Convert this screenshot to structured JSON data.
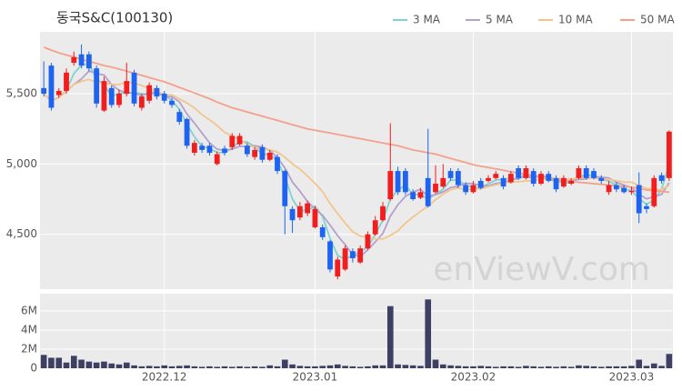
{
  "chart_data": {
    "type": "candlestick",
    "title": "동국S&C(100130)",
    "watermark": "enViewV.com",
    "categories": [
      null,
      null,
      null,
      null,
      null,
      null,
      null,
      null,
      null,
      null,
      null,
      null,
      null,
      null,
      null,
      null,
      "2022.12",
      null,
      null,
      null,
      null,
      null,
      null,
      null,
      null,
      null,
      null,
      null,
      null,
      null,
      null,
      null,
      null,
      null,
      null,
      null,
      "2023.01",
      null,
      null,
      null,
      null,
      null,
      null,
      null,
      null,
      null,
      null,
      null,
      null,
      null,
      null,
      null,
      null,
      null,
      null,
      null,
      null,
      "2023.02",
      null,
      null,
      null,
      null,
      null,
      null,
      null,
      null,
      null,
      null,
      null,
      null,
      null,
      null,
      null,
      null,
      null,
      null,
      null,
      null,
      "2023.03",
      null,
      null,
      null,
      null,
      null
    ],
    "open": [
      5540,
      5700,
      5490,
      5520,
      5720,
      5780,
      5780,
      5680,
      5380,
      5540,
      5420,
      5500,
      5650,
      5400,
      5450,
      5540,
      5500,
      5450,
      5370,
      5320,
      5080,
      5130,
      5130,
      5000,
      5110,
      5120,
      5140,
      5130,
      5050,
      5120,
      5030,
      5050,
      4950,
      4680,
      4620,
      4650,
      4550,
      4550,
      4450,
      4200,
      4250,
      4380,
      4300,
      4400,
      4500,
      4600,
      4750,
      4950,
      4950,
      4800,
      4760,
      4900,
      4800,
      4840,
      4950,
      4950,
      4850,
      4800,
      4880,
      4880,
      4900,
      4900,
      4870,
      4970,
      4900,
      4950,
      4860,
      4930,
      4900,
      4840,
      4860,
      4900,
      4970,
      4950,
      4900,
      4800,
      4850,
      4830,
      4800,
      4850,
      4700,
      4700,
      4920,
      4900
    ],
    "high": [
      5730,
      5720,
      5540,
      5680,
      5800,
      5850,
      5800,
      5700,
      5620,
      5560,
      5530,
      5720,
      5670,
      5500,
      5580,
      5560,
      5520,
      5470,
      5390,
      5330,
      5170,
      5150,
      5150,
      5090,
      5130,
      5220,
      5220,
      5150,
      5120,
      5140,
      5100,
      5070,
      4960,
      4700,
      4730,
      4740,
      4700,
      4570,
      4460,
      4340,
      4420,
      4400,
      4420,
      4520,
      4630,
      4730,
      5290,
      4980,
      4970,
      4820,
      4830,
      5250,
      4990,
      5000,
      4970,
      4970,
      4870,
      4880,
      4900,
      4920,
      4950,
      4920,
      4950,
      4990,
      4990,
      4970,
      4950,
      4950,
      4920,
      4920,
      4900,
      4990,
      4990,
      4970,
      4920,
      4880,
      4870,
      4850,
      4840,
      4940,
      4720,
      4920,
      4940,
      5240
    ],
    "low": [
      5480,
      5380,
      5470,
      5500,
      5700,
      5680,
      5660,
      5400,
      5370,
      5400,
      5400,
      5480,
      5410,
      5380,
      5430,
      5460,
      5430,
      5400,
      5280,
      5110,
      5060,
      5080,
      5060,
      4990,
      5060,
      5100,
      5130,
      5050,
      5030,
      5010,
      5020,
      4930,
      4500,
      4510,
      4600,
      4630,
      4540,
      4460,
      4230,
      4180,
      4240,
      4300,
      4290,
      4390,
      4490,
      4590,
      4740,
      4780,
      4780,
      4740,
      4750,
      4690,
      4790,
      4830,
      4880,
      4830,
      4780,
      4790,
      4820,
      4870,
      4890,
      4820,
      4860,
      4890,
      4890,
      4840,
      4850,
      4870,
      4800,
      4830,
      4850,
      4890,
      4890,
      4890,
      4860,
      4780,
      4800,
      4790,
      4780,
      4580,
      4650,
      4690,
      4860,
      4880
    ],
    "close": [
      5500,
      5400,
      5520,
      5650,
      5760,
      5700,
      5680,
      5430,
      5590,
      5420,
      5500,
      5590,
      5430,
      5480,
      5560,
      5480,
      5450,
      5420,
      5300,
      5130,
      5150,
      5100,
      5080,
      5070,
      5080,
      5200,
      5200,
      5070,
      5100,
      5030,
      5080,
      4950,
      4700,
      4600,
      4700,
      4720,
      4680,
      4480,
      4250,
      4320,
      4400,
      4330,
      4400,
      4500,
      4600,
      4700,
      4950,
      4800,
      4800,
      4750,
      4800,
      4700,
      4860,
      4900,
      4900,
      4850,
      4800,
      4850,
      4830,
      4900,
      4930,
      4840,
      4930,
      4900,
      4970,
      4860,
      4930,
      4880,
      4820,
      4900,
      4880,
      4970,
      4900,
      4900,
      4880,
      4850,
      4820,
      4800,
      4810,
      4650,
      4680,
      4900,
      4880,
      5230
    ],
    "volume": [
      1400000,
      1100000,
      1100000,
      600000,
      1300000,
      900000,
      700000,
      600000,
      700000,
      500000,
      400000,
      600000,
      300000,
      200000,
      250000,
      200000,
      300000,
      200000,
      250000,
      300000,
      200000,
      150000,
      200000,
      150000,
      200000,
      150000,
      200000,
      150000,
      200000,
      150000,
      300000,
      200000,
      900000,
      400000,
      250000,
      200000,
      200000,
      250000,
      300000,
      400000,
      250000,
      200000,
      150000,
      200000,
      300000,
      300000,
      6500000,
      400000,
      350000,
      300000,
      250000,
      7200000,
      900000,
      400000,
      300000,
      250000,
      200000,
      200000,
      250000,
      200000,
      150000,
      200000,
      200000,
      150000,
      250000,
      200000,
      150000,
      200000,
      150000,
      200000,
      150000,
      300000,
      250000,
      200000,
      150000,
      200000,
      200000,
      200000,
      250000,
      900000,
      250000,
      500000,
      250000,
      1500000
    ],
    "up_color": "#f01e1e",
    "down_color": "#1e64f0",
    "volume_color": "#3d3f63",
    "ma_series": [
      {
        "name": "3 MA",
        "color": "#7fd3cf"
      },
      {
        "name": "5 MA",
        "color": "#b3a0cc"
      },
      {
        "name": "10 MA",
        "color": "#f2c58c"
      },
      {
        "name": "50 MA",
        "color": "#f4a08c",
        "values": [
          5830,
          5810,
          5790,
          5775,
          5760,
          5745,
          5730,
          5715,
          5700,
          5690,
          5675,
          5660,
          5645,
          5630,
          5615,
          5600,
          5585,
          5565,
          5545,
          5525,
          5505,
          5485,
          5465,
          5440,
          5420,
          5400,
          5385,
          5370,
          5355,
          5340,
          5325,
          5310,
          5295,
          5280,
          5265,
          5250,
          5240,
          5230,
          5220,
          5210,
          5200,
          5190,
          5180,
          5170,
          5160,
          5150,
          5140,
          5130,
          5115,
          5100,
          5090,
          5080,
          5070,
          5055,
          5040,
          5025,
          5010,
          4995,
          4985,
          4975,
          4965,
          4955,
          4945,
          4935,
          4925,
          4915,
          4905,
          4895,
          4885,
          4880,
          4875,
          4870,
          4865,
          4860,
          4855,
          4850,
          4845,
          4840,
          4835,
          4825,
          4815,
          4810,
          4805,
          4800
        ]
      }
    ],
    "ylim": [
      4110,
      5940
    ],
    "yticks": [
      {
        "value": 4500,
        "label": "4,500"
      },
      {
        "value": 5000,
        "label": "5,000"
      },
      {
        "value": 5500,
        "label": "5,500"
      }
    ],
    "y2lim": [
      0,
      7800000
    ],
    "y2ticks": [
      0,
      {
        "value": 2000000,
        "label": "2M"
      },
      {
        "value": 4000000,
        "label": "4M"
      },
      {
        "value": 6000000,
        "label": "6M"
      }
    ],
    "grid": true
  }
}
